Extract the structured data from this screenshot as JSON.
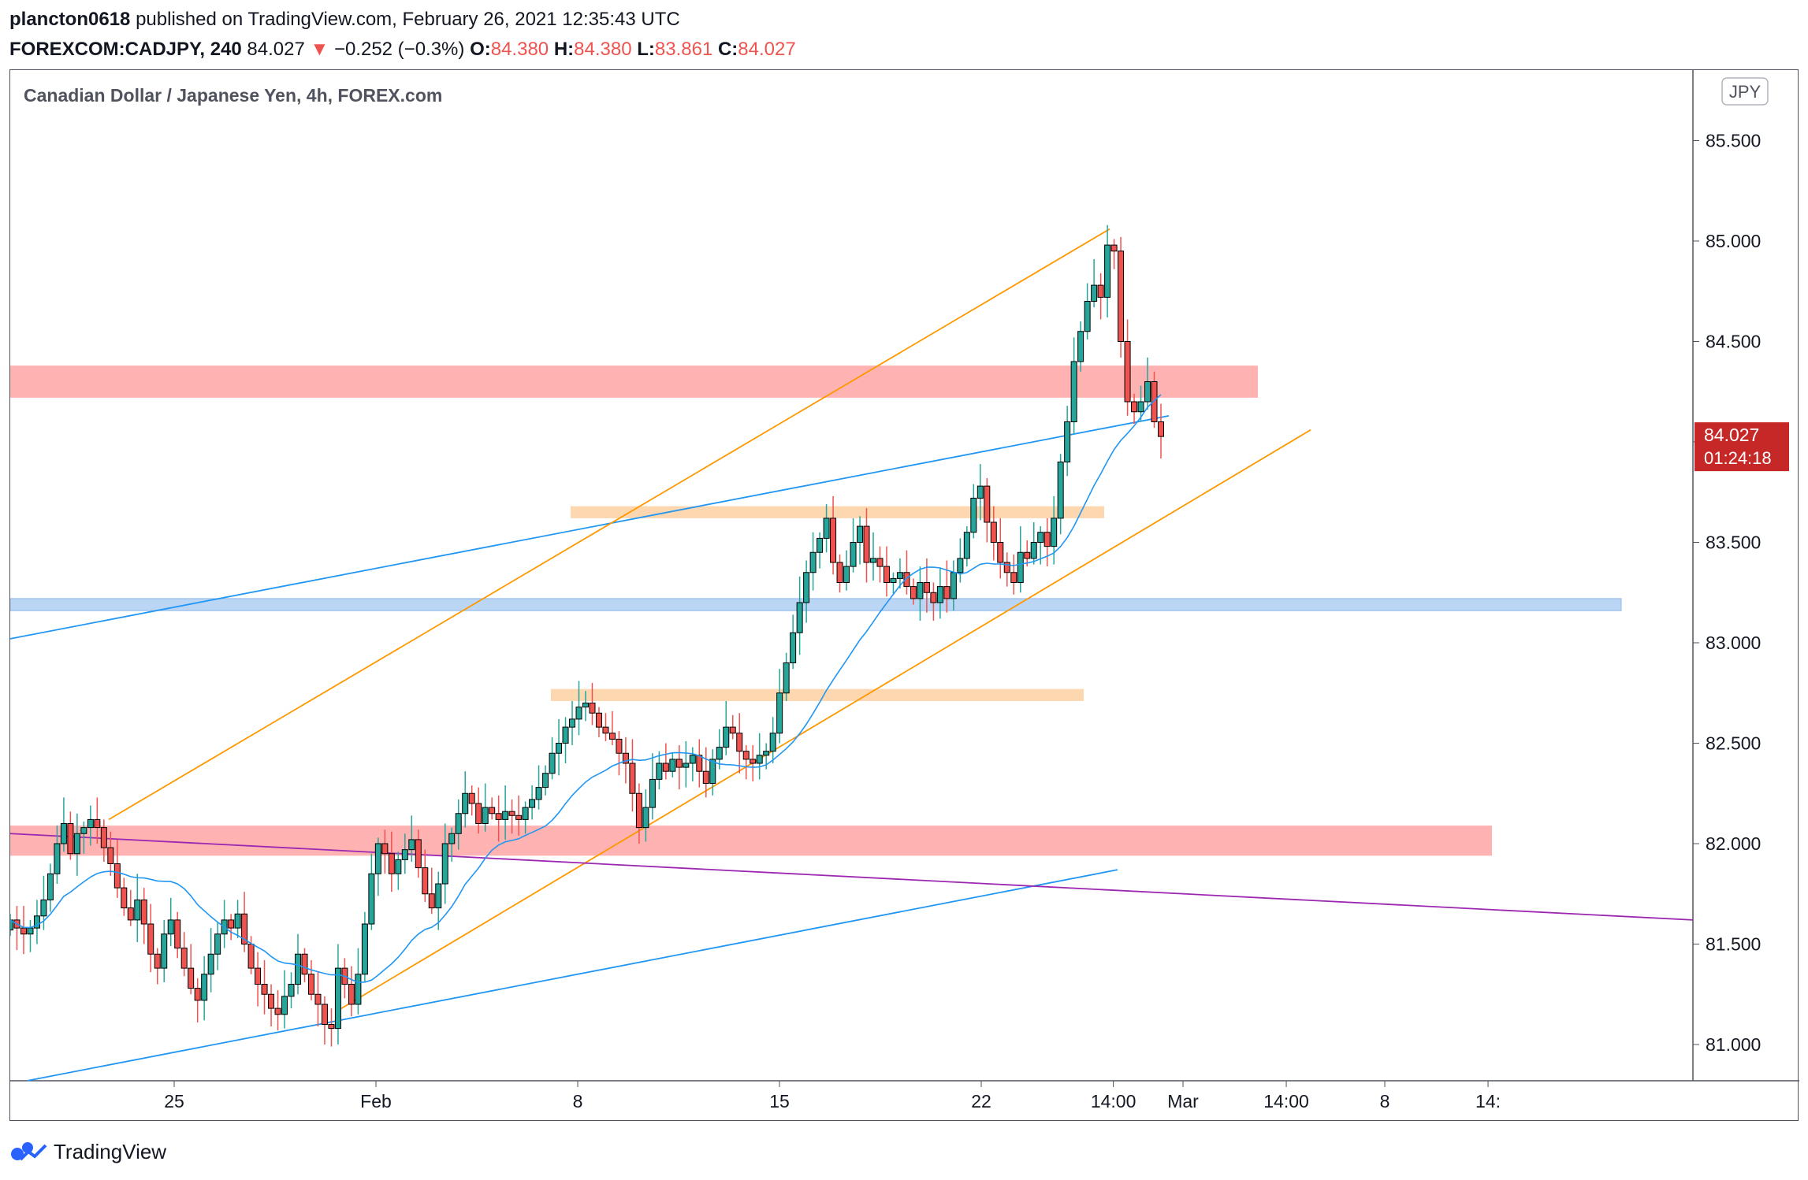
{
  "header": {
    "publisher": "plancton0618",
    "published_text": "published on TradingView.com, February 26, 2021 12:35:43 UTC",
    "symbol": "FOREXCOM:CADJPY, 240",
    "last": "84.027",
    "change_arrow": "▼",
    "change": "−0.252 (−0.3%)",
    "open_label": "O:",
    "open": "84.380",
    "high_label": "H:",
    "high": "84.380",
    "low_label": "L:",
    "low": "83.861",
    "close_label": "C:",
    "close": "84.027"
  },
  "footer": {
    "brand": "TradingView"
  },
  "colors": {
    "up": "#26a69a",
    "down": "#ef5350",
    "candle_outline": "#000000",
    "resistance_zone": "#ffb2b2",
    "support_zone": "#bbd6f5",
    "minor_zone": "#fcd7b0",
    "trendline_blue": "#2196f3",
    "trendline_orange": "#ff9800",
    "trendline_purple": "#9c27b0",
    "ma": "#2196f3",
    "price_label": "#c62828"
  },
  "chart_data": {
    "type": "candlestick",
    "title": "Canadian Dollar / Japanese Yen, 4h, FOREX.com",
    "currency_badge": "JPY",
    "x_unit": "4h bars, 2021-01-21 12:00 to 2021-02-26 12:00",
    "ylim": [
      80.82,
      86.0
    ],
    "yticks": [
      "85.500",
      "85.000",
      "84.500",
      "84.000",
      "83.500",
      "83.000",
      "82.500",
      "82.000",
      "81.500",
      "81.000"
    ],
    "xticks": [
      {
        "label": "25",
        "date": "2021-01-25"
      },
      {
        "label": "Feb",
        "date": "2021-02-01"
      },
      {
        "label": "8",
        "date": "2021-02-08"
      },
      {
        "label": "15",
        "date": "2021-02-15"
      },
      {
        "label": "22",
        "date": "2021-02-22"
      },
      {
        "label": "14:00",
        "date": "2021-02-26 14:00"
      },
      {
        "label": "Mar",
        "date": "2021-03-01"
      },
      {
        "label": "14:00",
        "date": "2021-03-04 14:00"
      },
      {
        "label": "8",
        "date": "2021-03-08"
      },
      {
        "label": "14:",
        "date": "2021-03-11 14:00"
      }
    ],
    "last_price": {
      "value": "84.027",
      "countdown": "01:24:18"
    },
    "candles_close": [
      81.62,
      81.58,
      81.55,
      81.58,
      81.64,
      81.72,
      81.85,
      82.0,
      82.1,
      81.95,
      82.05,
      82.08,
      82.12,
      82.08,
      81.98,
      81.9,
      81.78,
      81.68,
      81.62,
      81.72,
      81.6,
      81.45,
      81.38,
      81.55,
      81.62,
      81.48,
      81.38,
      81.28,
      81.22,
      81.35,
      81.45,
      81.55,
      81.62,
      81.58,
      81.65,
      81.5,
      81.38,
      81.3,
      81.25,
      81.18,
      81.15,
      81.24,
      81.3,
      81.45,
      81.35,
      81.25,
      81.2,
      81.1,
      81.08,
      81.38,
      81.3,
      81.2,
      81.35,
      81.6,
      81.85,
      82.0,
      81.95,
      81.85,
      81.92,
      81.97,
      82.02,
      81.88,
      81.75,
      81.68,
      81.8,
      82.0,
      82.05,
      82.15,
      82.25,
      82.2,
      82.1,
      82.18,
      82.15,
      82.12,
      82.16,
      82.14,
      82.12,
      82.18,
      82.22,
      82.28,
      82.35,
      82.45,
      82.5,
      82.58,
      82.62,
      82.68,
      82.7,
      82.65,
      82.58,
      82.55,
      82.52,
      82.45,
      82.4,
      82.25,
      82.08,
      82.18,
      82.32,
      82.4,
      82.36,
      82.42,
      82.38,
      82.4,
      82.44,
      82.36,
      82.3,
      82.42,
      82.48,
      82.58,
      82.55,
      82.46,
      82.42,
      82.4,
      82.44,
      82.46,
      82.55,
      82.75,
      82.9,
      83.05,
      83.2,
      83.35,
      83.45,
      83.52,
      83.62,
      83.4,
      83.3,
      83.38,
      83.5,
      83.58,
      83.4,
      83.42,
      83.38,
      83.3,
      83.32,
      83.35,
      83.28,
      83.22,
      83.3,
      83.25,
      83.2,
      83.28,
      83.22,
      83.35,
      83.42,
      83.55,
      83.72,
      83.78,
      83.6,
      83.5,
      83.4,
      83.35,
      83.3,
      83.45,
      83.42,
      83.5,
      83.55,
      83.48,
      83.62,
      83.9,
      84.1,
      84.4,
      84.55,
      84.7,
      84.78,
      84.72,
      84.98,
      84.95,
      84.5,
      84.2,
      84.15,
      84.2,
      84.3,
      84.1,
      84.027
    ]
  }
}
